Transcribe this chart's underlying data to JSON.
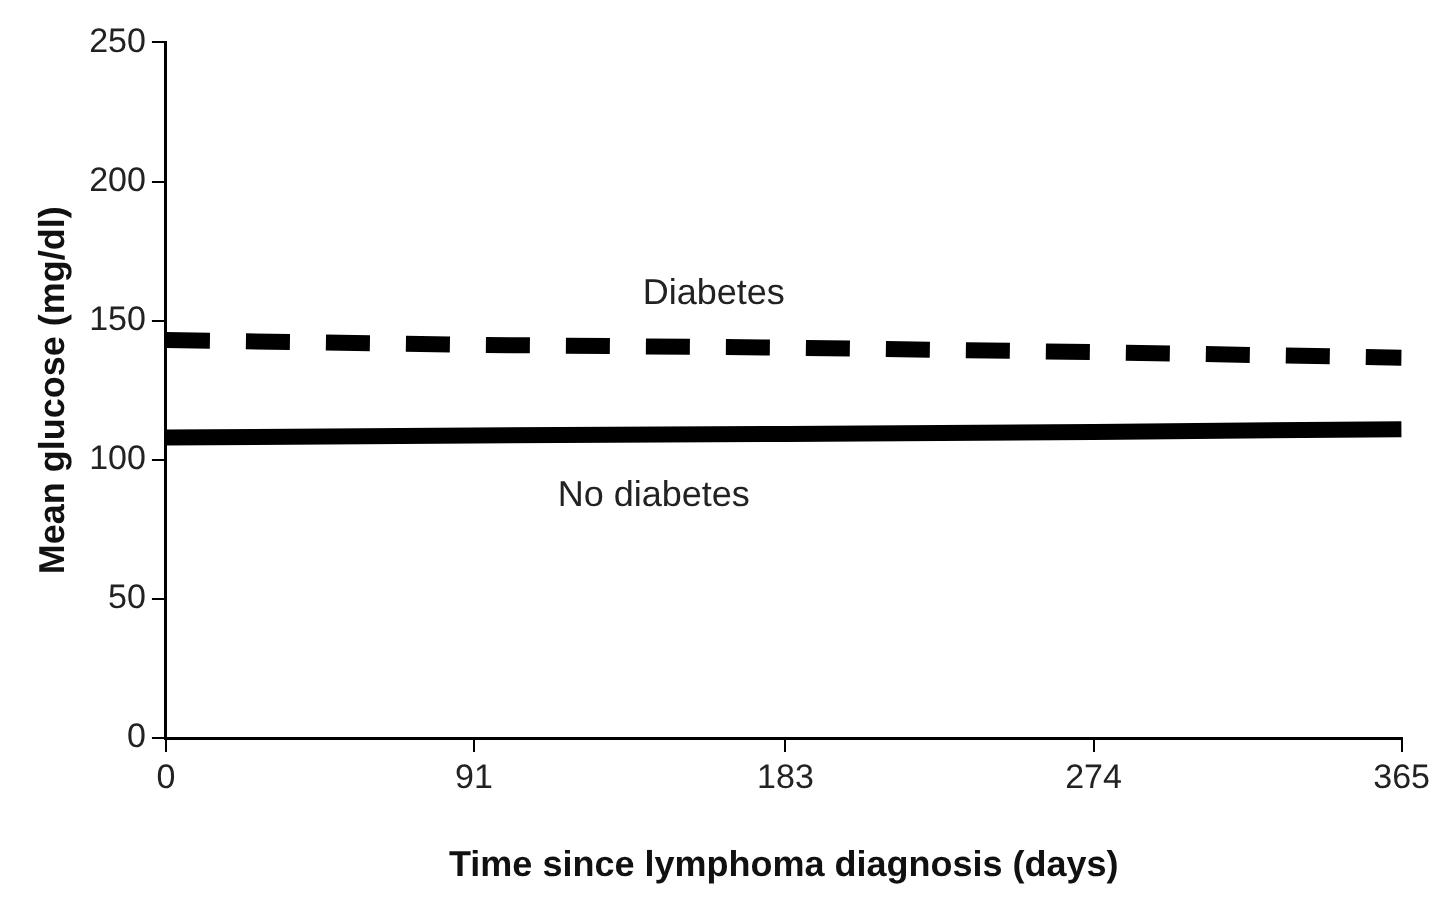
{
  "chart_data": {
    "type": "line",
    "xlabel": "Time since lymphoma diagnosis (days)",
    "ylabel": "Mean glucose (mg/dl)",
    "x": [
      0,
      91,
      183,
      274,
      365
    ],
    "series": [
      {
        "name": "Diabetes",
        "color": "#000000",
        "line_style": "dashed",
        "values": [
          143,
          141.3,
          140.3,
          138.7,
          136.7
        ]
      },
      {
        "name": "No diabetes",
        "color": "#000000",
        "line_style": "solid",
        "values": [
          108,
          108.7,
          109.3,
          110,
          111
        ]
      }
    ],
    "xlim": [
      0,
      365
    ],
    "xticks": [
      0,
      91,
      183,
      274,
      365
    ],
    "ylim": [
      0,
      250
    ],
    "yticks": [
      0,
      50,
      100,
      150,
      200,
      250
    ],
    "marker": "none",
    "legend": false
  }
}
